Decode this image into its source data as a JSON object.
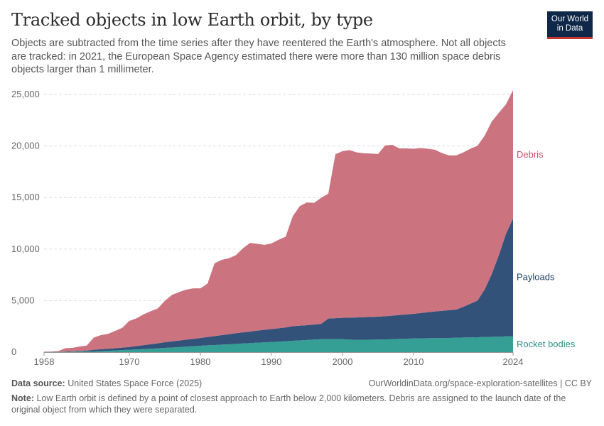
{
  "header": {
    "title": "Tracked objects in low Earth orbit, by type",
    "subtitle": "Objects are subtracted from the time series after they have reentered the Earth's atmosphere. Not all objects are tracked: in 2021, the European Space Agency estimated there were more than 130 million space debris objects larger than 1 millimeter.",
    "logo_line1": "Our World",
    "logo_line2": "in Data"
  },
  "footer": {
    "source_label": "Data source:",
    "source_text": "United States Space Force (2025)",
    "url": "OurWorldinData.org/space-exploration-satellites | CC BY",
    "note_label": "Note:",
    "note_text": "Low Earth orbit is defined by a point of closest approach to Earth below 2,000 kilometers. Debris are assigned to the launch date of the original object from which they were separated."
  },
  "chart_data": {
    "type": "area",
    "stacked": true,
    "title": "Tracked objects in low Earth orbit, by type",
    "xlim": [
      1958,
      2024
    ],
    "ylim": [
      0,
      25000
    ],
    "x_ticks": [
      "1958",
      "1970",
      "1980",
      "1990",
      "2000",
      "2010",
      "2024"
    ],
    "y_ticks": [
      "0",
      "5,000",
      "10,000",
      "15,000",
      "20,000",
      "25,000"
    ],
    "grid": "horizontal dashed",
    "legend": "right, inline labels",
    "x_start": 1958,
    "series": [
      {
        "name": "Rocket bodies",
        "color": "#359e95",
        "label_color": "#2a9187",
        "values": [
          0,
          10,
          20,
          30,
          40,
          50,
          60,
          70,
          100,
          130,
          160,
          200,
          230,
          270,
          300,
          340,
          370,
          410,
          450,
          490,
          540,
          580,
          620,
          660,
          690,
          730,
          760,
          800,
          840,
          880,
          920,
          950,
          990,
          1020,
          1060,
          1100,
          1140,
          1180,
          1220,
          1260,
          1260,
          1270,
          1260,
          1220,
          1190,
          1200,
          1210,
          1220,
          1240,
          1260,
          1290,
          1310,
          1330,
          1340,
          1350,
          1360,
          1370,
          1380,
          1400,
          1420,
          1440,
          1450,
          1470,
          1490,
          1510,
          1530,
          1560
        ]
      },
      {
        "name": "Payloads",
        "color": "#33527a",
        "label_color": "#1d3d63",
        "values": [
          0,
          10,
          20,
          30,
          40,
          60,
          90,
          160,
          180,
          200,
          220,
          240,
          270,
          320,
          380,
          430,
          490,
          550,
          600,
          640,
          670,
          710,
          760,
          810,
          870,
          920,
          980,
          1040,
          1080,
          1120,
          1170,
          1220,
          1260,
          1300,
          1340,
          1420,
          1430,
          1440,
          1460,
          1490,
          2000,
          2030,
          2070,
          2130,
          2180,
          2190,
          2210,
          2220,
          2250,
          2290,
          2320,
          2350,
          2390,
          2460,
          2520,
          2590,
          2640,
          2690,
          2730,
          2980,
          3260,
          3550,
          4610,
          6080,
          7900,
          9940,
          11400
        ]
      },
      {
        "name": "Debris",
        "color": "#cc7380",
        "label_color": "#c4506a",
        "values": [
          50,
          50,
          60,
          330,
          330,
          440,
          490,
          1190,
          1370,
          1440,
          1680,
          1920,
          2530,
          2690,
          2990,
          3200,
          3380,
          4020,
          4500,
          4700,
          4850,
          4900,
          4810,
          5180,
          7070,
          7300,
          7370,
          7570,
          8170,
          8600,
          8420,
          8240,
          8300,
          8580,
          8800,
          10670,
          11610,
          11900,
          11800,
          12230,
          12110,
          15900,
          16170,
          16240,
          16010,
          15900,
          15850,
          15780,
          16560,
          16570,
          16160,
          16110,
          16010,
          16000,
          15860,
          15690,
          15300,
          15020,
          14960,
          14980,
          15030,
          15020,
          14920,
          14800,
          13810,
          12570,
          12460
        ]
      }
    ]
  }
}
